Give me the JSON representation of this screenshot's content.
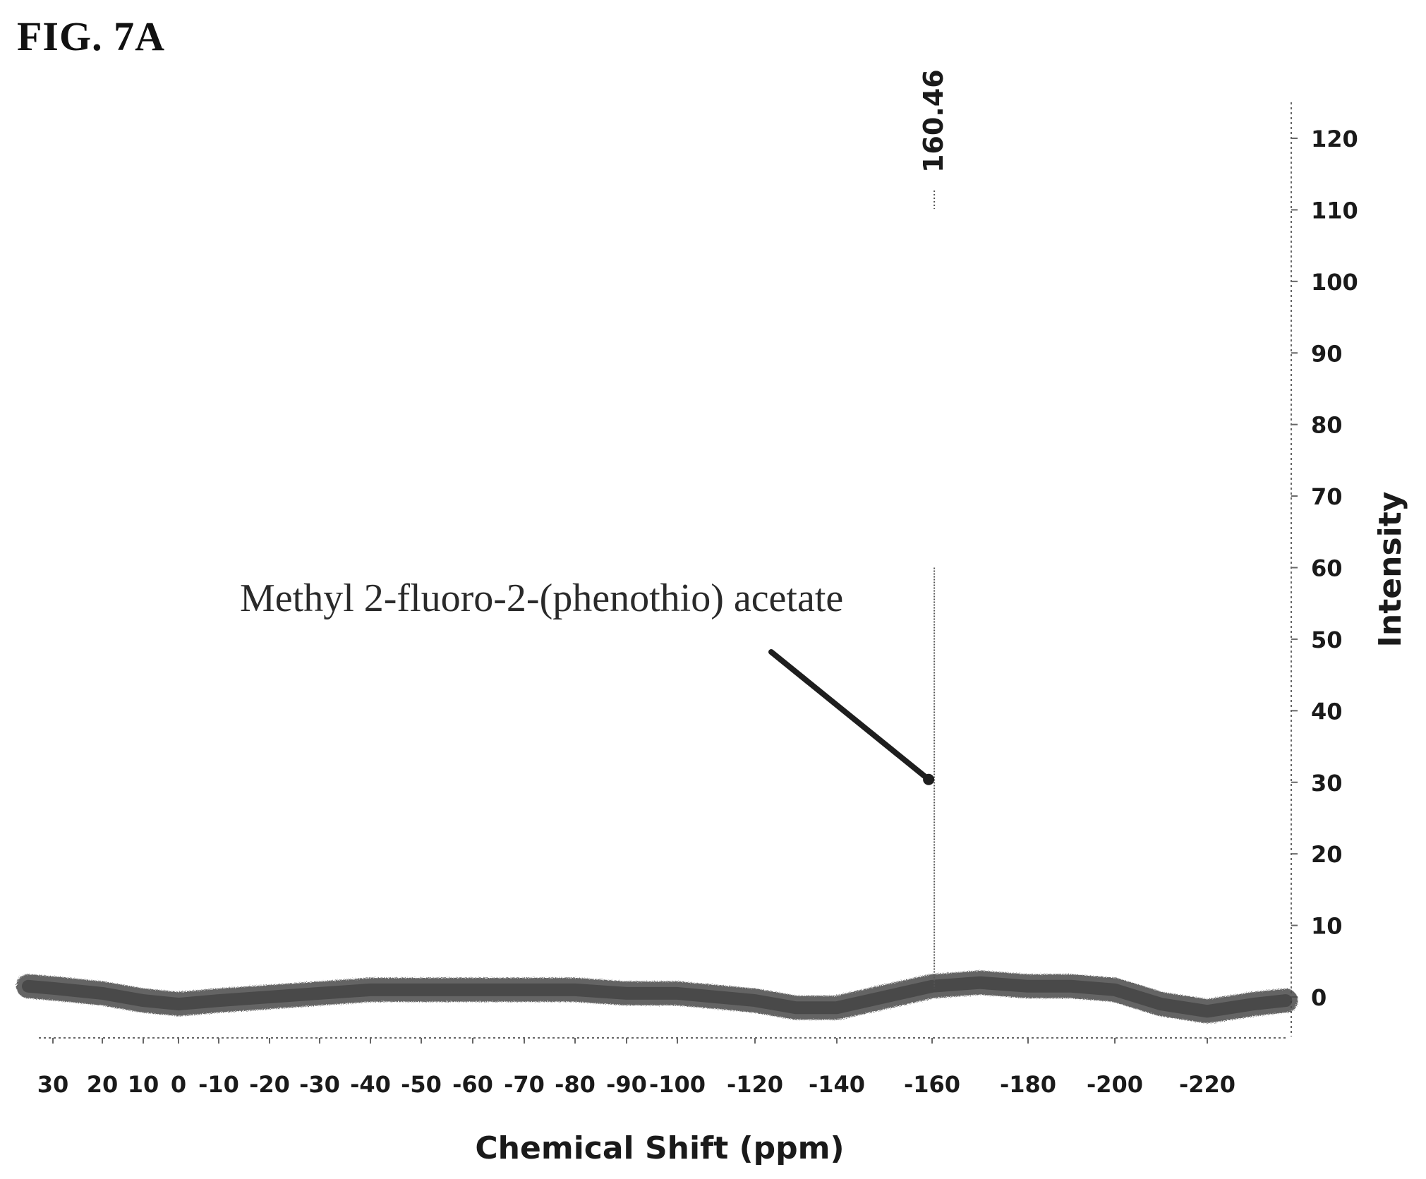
{
  "figure": {
    "label": "FIG. 7A"
  },
  "chart_data": {
    "type": "line",
    "title": "",
    "xlabel": "Chemical Shift (ppm)",
    "ylabel": "Intensity",
    "x_ticks": [
      30,
      20,
      10,
      0,
      -10,
      -20,
      -30,
      -40,
      -50,
      -60,
      -70,
      -80,
      -90,
      -100,
      -120,
      -140,
      -160,
      -180,
      -200,
      -220
    ],
    "y_ticks": [
      0,
      10,
      20,
      30,
      40,
      50,
      60,
      70,
      80,
      90,
      100,
      110,
      120
    ],
    "ylim": [
      -6,
      122
    ],
    "grid": false,
    "legend": "none",
    "series": [
      {
        "x": [
          35,
          30,
          20,
          10,
          0,
          -10,
          -20,
          -30,
          -40,
          -50,
          -60,
          -70,
          -80,
          -90,
          -100,
          -110,
          -120,
          -130,
          -140,
          -150,
          -160,
          -170,
          -180,
          -190,
          -200,
          -210,
          -220,
          -230,
          -237
        ],
        "y": [
          1.5,
          1.2,
          0.5,
          -0.5,
          -1,
          -0.5,
          0,
          0.5,
          1,
          1,
          1,
          1,
          1,
          0.5,
          0.5,
          0,
          -0.5,
          -1.5,
          -1.5,
          0,
          1.5,
          2,
          1.5,
          1.5,
          1,
          -1,
          -2,
          -1,
          -0.5
        ]
      }
    ],
    "peaks": [
      {
        "x": -160.46,
        "y": 112,
        "label": "160.46"
      }
    ],
    "annotations": [
      {
        "text": "Methyl 2-fluoro-2-(phenothio) acetate",
        "target_x": -160.46,
        "target_y": 30
      }
    ],
    "colors": {
      "trace": "#4a4a4a",
      "axis": "#666666",
      "text": "#1a1a1a"
    }
  }
}
